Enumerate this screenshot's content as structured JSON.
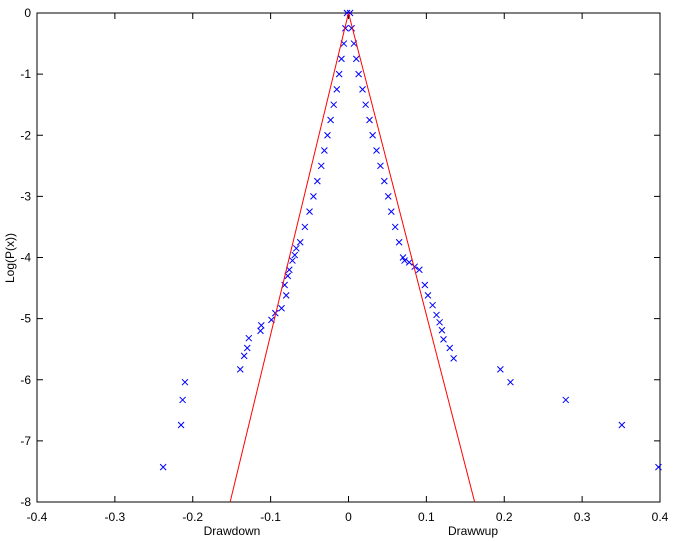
{
  "chart_data": {
    "type": "scatter",
    "ylabel": "Log(P(x))",
    "xlabels": [
      "Drawdown",
      "Drawwup"
    ],
    "xlim": [
      -0.4,
      0.4
    ],
    "ylim": [
      -8,
      0
    ],
    "xticks": [
      -0.4,
      -0.3,
      -0.2,
      -0.1,
      0,
      0.1,
      0.2,
      0.3,
      0.4
    ],
    "yticks": [
      0,
      -1,
      -2,
      -3,
      -4,
      -5,
      -6,
      -7,
      -8
    ],
    "grid": false,
    "series": [
      {
        "style": "x",
        "color": "#0000ff",
        "x": [
          -0.002,
          -0.004,
          -0.006,
          -0.009,
          -0.012,
          -0.015,
          -0.019,
          -0.023,
          -0.027,
          -0.031,
          -0.035,
          -0.04,
          -0.045,
          -0.05,
          -0.056,
          -0.062,
          -0.067,
          -0.069,
          -0.072,
          -0.076,
          -0.078,
          -0.082,
          -0.08,
          -0.086,
          -0.094,
          -0.099,
          -0.112,
          -0.113,
          -0.128,
          -0.13,
          -0.134,
          -0.139,
          -0.21,
          -0.213,
          -0.215,
          -0.238,
          0.002,
          0.004,
          0.007,
          0.01,
          0.013,
          0.018,
          0.022,
          0.027,
          0.031,
          0.036,
          0.041,
          0.046,
          0.051,
          0.055,
          0.06,
          0.065,
          0.07,
          0.072,
          0.078,
          0.085,
          0.091,
          0.098,
          0.102,
          0.108,
          0.113,
          0.117,
          0.12,
          0.122,
          0.13,
          0.135,
          0.195,
          0.208,
          0.279,
          0.351,
          0.398
        ],
        "values": [
          0,
          -0.25,
          -0.5,
          -0.75,
          -1.0,
          -1.25,
          -1.5,
          -1.75,
          -2.0,
          -2.25,
          -2.5,
          -2.75,
          -3.0,
          -3.25,
          -3.5,
          -3.75,
          -3.85,
          -3.96,
          -4.05,
          -4.2,
          -4.3,
          -4.45,
          -4.62,
          -4.83,
          -4.91,
          -5.02,
          -5.11,
          -5.2,
          -5.32,
          -5.48,
          -5.61,
          -5.83,
          -6.04,
          -6.33,
          -6.74,
          -7.43,
          0,
          -0.25,
          -0.5,
          -0.75,
          -1.0,
          -1.25,
          -1.5,
          -1.75,
          -2.0,
          -2.25,
          -2.5,
          -2.75,
          -3.0,
          -3.25,
          -3.5,
          -3.75,
          -4.0,
          -4.05,
          -4.08,
          -4.15,
          -4.2,
          -4.45,
          -4.62,
          -4.78,
          -4.94,
          -5.06,
          -5.19,
          -5.34,
          -5.48,
          -5.65,
          -5.83,
          -6.04,
          -6.33,
          -6.74,
          -7.43
        ]
      },
      {
        "style": "line",
        "color": "#ff0000",
        "x": [
          -0.152,
          0
        ],
        "values": [
          -8,
          0
        ]
      },
      {
        "style": "line",
        "color": "#ff0000",
        "x": [
          0,
          0.162
        ],
        "values": [
          0,
          -8
        ]
      }
    ]
  }
}
